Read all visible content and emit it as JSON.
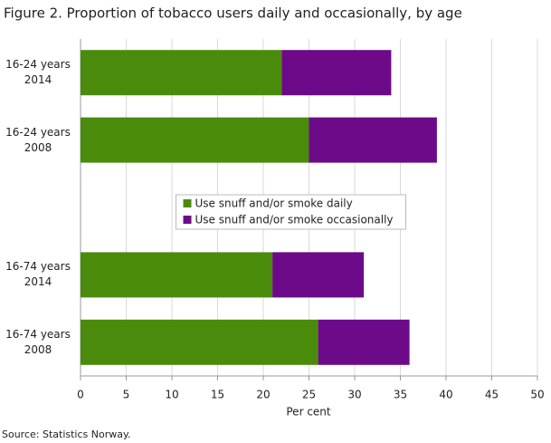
{
  "chart_data": {
    "type": "stacked-bar-horizontal",
    "title": "Figure 2. Proportion of tobacco users daily and occasionally, by age",
    "categories": [
      "16-24 years 2014",
      "16-24 years 2008",
      null,
      "16-74 years 2014",
      "16-74 years 2008"
    ],
    "series": [
      {
        "name": "Use snuff and/or smoke daily",
        "color": "#4b8b0c",
        "values": [
          22,
          25,
          null,
          21,
          26
        ]
      },
      {
        "name": "Use snuff and/or smoke occasionally",
        "color": "#6c0a89",
        "values": [
          12,
          14,
          null,
          10,
          10
        ]
      }
    ],
    "xlabel": "Per cent",
    "xlim": [
      0,
      50
    ],
    "xticks": [
      0,
      5,
      10,
      15,
      20,
      25,
      30,
      35,
      40,
      45,
      50
    ],
    "grid": true,
    "legend": "center",
    "source": "Source: Statistics Norway."
  }
}
